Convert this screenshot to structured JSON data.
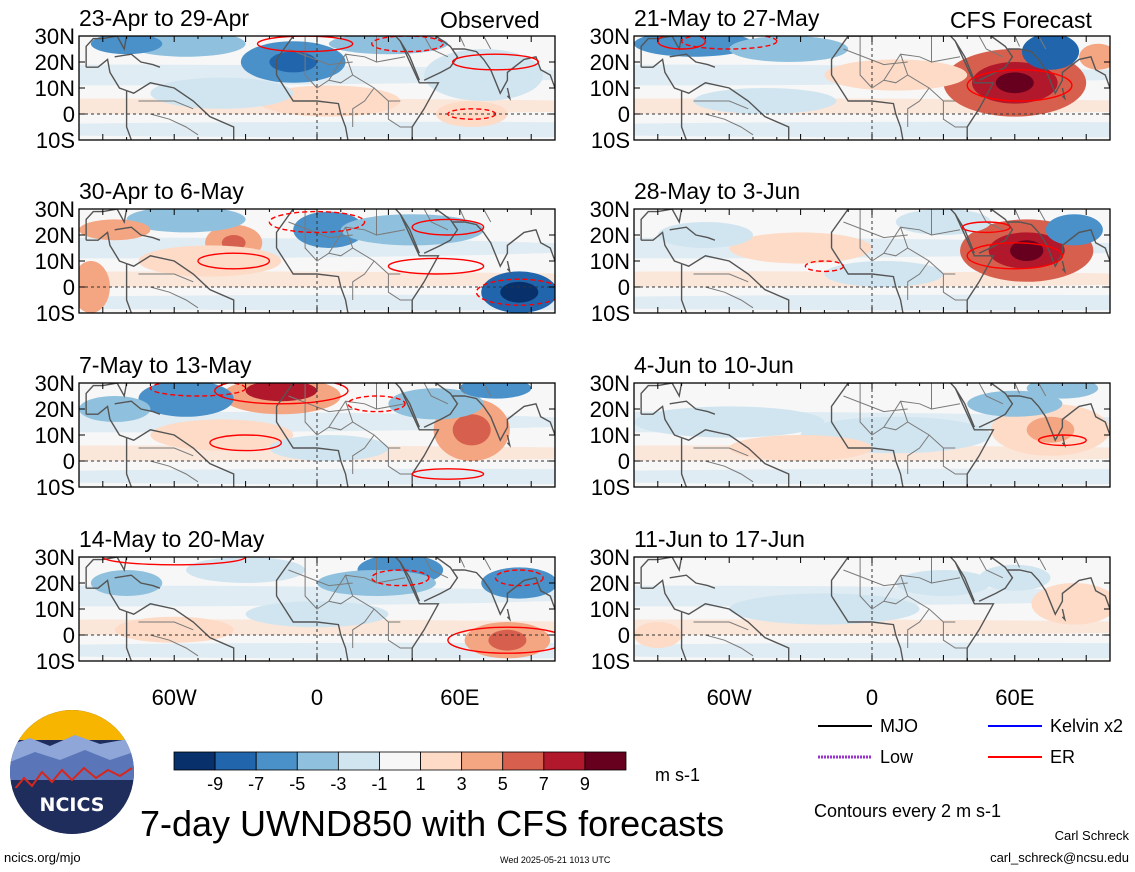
{
  "header": {
    "left_tag": "Observed",
    "right_tag": "CFS Forecast"
  },
  "chart_data": {
    "type": "heatmap",
    "title": "7-day UWND850 with CFS forecasts",
    "variable": "UWND850",
    "units": "m s-1",
    "lon_range": [
      -100,
      100
    ],
    "lat_range": [
      -10,
      30
    ],
    "lat_ticks": [
      "30N",
      "20N",
      "10N",
      "0",
      "10S"
    ],
    "lon_ticks": [
      "60W",
      "0",
      "60E"
    ],
    "colorbar": {
      "ticks": [
        "-9",
        "-7",
        "-5",
        "-3",
        "-1",
        "1",
        "3",
        "5",
        "7",
        "9"
      ],
      "colors": [
        "#08306b",
        "#2166ac",
        "#4a90c9",
        "#8fc1de",
        "#d1e5f0",
        "#f7f7f7",
        "#fddbc7",
        "#f4a582",
        "#d6604d",
        "#b2182b",
        "#67001f"
      ]
    },
    "panels": [
      {
        "id": "obs1",
        "title": "23-Apr to 29-Apr",
        "group": "Observed",
        "col": 0,
        "row": 0
      },
      {
        "id": "obs2",
        "title": "30-Apr to 6-May",
        "group": "Observed",
        "col": 0,
        "row": 1
      },
      {
        "id": "obs3",
        "title": "7-May to 13-May",
        "group": "Observed",
        "col": 0,
        "row": 2
      },
      {
        "id": "obs4",
        "title": "14-May to 20-May",
        "group": "Observed",
        "col": 0,
        "row": 3
      },
      {
        "id": "fc1",
        "title": "21-May to 27-May",
        "group": "CFS Forecast",
        "col": 1,
        "row": 0
      },
      {
        "id": "fc2",
        "title": "28-May to 3-Jun",
        "group": "CFS Forecast",
        "col": 1,
        "row": 1
      },
      {
        "id": "fc3",
        "title": "4-Jun to 10-Jun",
        "group": "CFS Forecast",
        "col": 1,
        "row": 2
      },
      {
        "id": "fc4",
        "title": "11-Jun to 17-Jun",
        "group": "CFS Forecast",
        "col": 1,
        "row": 3
      }
    ],
    "legend": {
      "placement": "bottom-right",
      "items": [
        {
          "name": "MJO",
          "color": "#000000"
        },
        {
          "name": "Kelvin x2",
          "color": "#0000ff"
        },
        {
          "name": "Low",
          "color": "#9933cc"
        },
        {
          "name": "ER",
          "color": "#ff0000"
        }
      ]
    },
    "contour_note": "Contours every 2 m s-1",
    "grid": false
  },
  "footer": {
    "logo_text": "NCICS",
    "site": "ncics.org/mjo",
    "timestamp": "Wed 2025-05-21 1013 UTC",
    "author": "Carl Schreck",
    "email": "carl_schreck@ncsu.edu"
  }
}
